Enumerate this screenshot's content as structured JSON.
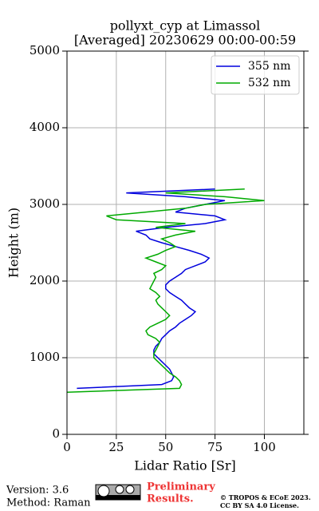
{
  "chart_data": {
    "type": "line",
    "title": "pollyxt_cyp at Limassol",
    "subtitle": "[Averaged] 20230629 00:00-00:59",
    "x_label": "Lidar Ratio [Sr]",
    "y_label": "Height (m)",
    "xlim": [
      0,
      120
    ],
    "xticks": [
      0,
      25,
      50,
      75,
      100
    ],
    "ylim": [
      0,
      5000
    ],
    "yticks": [
      0,
      1000,
      2000,
      3000,
      4000,
      5000
    ],
    "grid": true,
    "legend": "upper right",
    "y": [
      550,
      600,
      650,
      700,
      750,
      800,
      850,
      900,
      950,
      1000,
      1050,
      1100,
      1150,
      1200,
      1250,
      1300,
      1350,
      1400,
      1450,
      1500,
      1550,
      1600,
      1650,
      1700,
      1750,
      1800,
      1850,
      1900,
      1950,
      2000,
      2050,
      2100,
      2150,
      2200,
      2250,
      2300,
      2350,
      2400,
      2450,
      2500,
      2550,
      2600,
      2650,
      2700,
      2750,
      2800,
      2850,
      2900,
      2950,
      3000,
      3050,
      3100,
      3150,
      3200
    ],
    "series": [
      {
        "name": "355 nm",
        "color": "#0000dd",
        "values": [
          null,
          5,
          48,
          53,
          54,
          53,
          52,
          50,
          48,
          46,
          44,
          44,
          45,
          47,
          48,
          50,
          52,
          55,
          57,
          60,
          63,
          65,
          62,
          60,
          58,
          55,
          52,
          50,
          50,
          52,
          55,
          58,
          60,
          65,
          70,
          72,
          68,
          62,
          55,
          48,
          42,
          40,
          35,
          50,
          70,
          80,
          75,
          55,
          60,
          70,
          80,
          60,
          30,
          75
        ]
      },
      {
        "name": "532 nm",
        "color": "#00aa00",
        "values": [
          0,
          57,
          58,
          57,
          55,
          52,
          50,
          48,
          46,
          44,
          44,
          45,
          46,
          47,
          45,
          41,
          40,
          42,
          46,
          50,
          52,
          50,
          48,
          46,
          45,
          47,
          45,
          42,
          43,
          44,
          45,
          44,
          48,
          50,
          45,
          40,
          46,
          50,
          55,
          52,
          48,
          55,
          65,
          45,
          60,
          25,
          20,
          40,
          60,
          70,
          100,
          80,
          50,
          90
        ]
      }
    ],
    "footer": {
      "version": "Version: 3.6",
      "method": "Method: Raman",
      "status_1": "Preliminary",
      "status_2": "Results.",
      "copyright": "© TROPOS & ECoE 2023.",
      "license": "CC BY SA 4.0 License."
    }
  }
}
